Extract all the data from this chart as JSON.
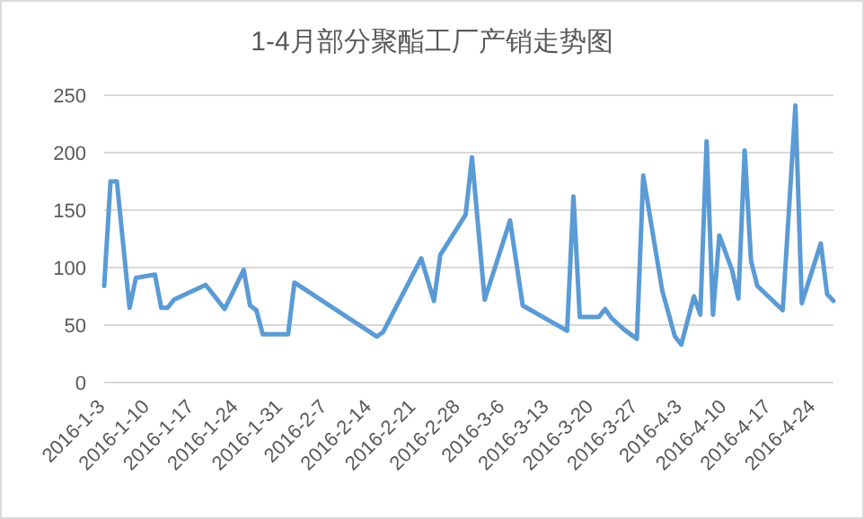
{
  "chart_data": {
    "type": "line",
    "title": "1-4月部分聚酯工厂产销走势图",
    "color": "#5b9bd5",
    "grid": "y",
    "x": [
      "2016-01-03",
      "2016-01-04",
      "2016-01-05",
      "2016-01-07",
      "2016-01-08",
      "2016-01-11",
      "2016-01-12",
      "2016-01-13",
      "2016-01-14",
      "2016-01-19",
      "2016-01-22",
      "2016-01-25",
      "2016-01-26",
      "2016-01-27",
      "2016-01-28",
      "2016-02-01",
      "2016-02-02",
      "2016-02-15",
      "2016-02-16",
      "2016-02-22",
      "2016-02-24",
      "2016-02-25",
      "2016-02-29",
      "2016-03-01",
      "2016-03-03",
      "2016-03-07",
      "2016-03-09",
      "2016-03-16",
      "2016-03-17",
      "2016-03-18",
      "2016-03-21",
      "2016-03-22",
      "2016-03-23",
      "2016-03-25",
      "2016-03-27",
      "2016-03-28",
      "2016-03-31",
      "2016-04-02",
      "2016-04-03",
      "2016-04-05",
      "2016-04-06",
      "2016-04-07",
      "2016-04-08",
      "2016-04-09",
      "2016-04-11",
      "2016-04-12",
      "2016-04-13",
      "2016-04-14",
      "2016-04-15",
      "2016-04-19",
      "2016-04-21",
      "2016-04-22",
      "2016-04-25",
      "2016-04-26",
      "2016-04-27"
    ],
    "values": [
      84,
      175,
      175,
      65,
      91,
      94,
      65,
      65,
      72,
      85,
      64,
      98,
      67,
      63,
      42,
      42,
      87,
      40,
      44,
      108,
      71,
      111,
      146,
      196,
      72,
      141,
      67,
      45,
      162,
      57,
      57,
      64,
      56,
      46,
      38,
      180,
      80,
      40,
      33,
      75,
      59,
      210,
      59,
      128,
      98,
      73,
      202,
      106,
      84,
      63,
      241,
      69,
      121,
      77,
      71
    ],
    "xlim": [
      "2016-01-03",
      "2016-04-27"
    ],
    "xticks": [
      {
        "value": "2016-01-03",
        "label": "2016-1-3"
      },
      {
        "value": "2016-01-10",
        "label": "2016-1-10"
      },
      {
        "value": "2016-01-17",
        "label": "2016-1-17"
      },
      {
        "value": "2016-01-24",
        "label": "2016-1-24"
      },
      {
        "value": "2016-01-31",
        "label": "2016-1-31"
      },
      {
        "value": "2016-02-07",
        "label": "2016-2-7"
      },
      {
        "value": "2016-02-14",
        "label": "2016-2-14"
      },
      {
        "value": "2016-02-21",
        "label": "2016-2-21"
      },
      {
        "value": "2016-02-28",
        "label": "2016-2-28"
      },
      {
        "value": "2016-03-06",
        "label": "2016-3-6"
      },
      {
        "value": "2016-03-13",
        "label": "2016-3-13"
      },
      {
        "value": "2016-03-20",
        "label": "2016-3-20"
      },
      {
        "value": "2016-03-27",
        "label": "2016-3-27"
      },
      {
        "value": "2016-04-03",
        "label": "2016-4-3"
      },
      {
        "value": "2016-04-10",
        "label": "2016-4-10"
      },
      {
        "value": "2016-04-17",
        "label": "2016-4-17"
      },
      {
        "value": "2016-04-24",
        "label": "2016-4-24"
      }
    ],
    "ylim": [
      0,
      250
    ],
    "yticks": [
      0,
      50,
      100,
      150,
      200,
      250
    ]
  }
}
